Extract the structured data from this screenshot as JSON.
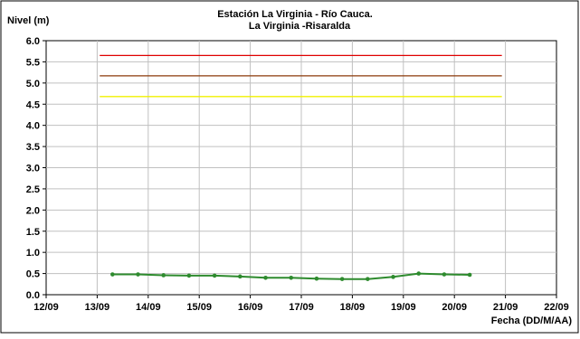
{
  "chart_data": {
    "type": "line",
    "title": "Estación La Virginia  - Río Cauca.",
    "subtitle": "La Virginia -Risaralda",
    "ylabel": "Nivel (m)",
    "xlabel": "Fecha (DD/M/AA)",
    "ylim": [
      0,
      6
    ],
    "y_ticks": [
      "0.0",
      "0.5",
      "1.0",
      "1.5",
      "2.0",
      "2.5",
      "3.0",
      "3.5",
      "4.0",
      "4.5",
      "5.0",
      "5.5",
      "6.0"
    ],
    "x_ticks": [
      "12/09",
      "13/09",
      "14/09",
      "15/09",
      "16/09",
      "17/09",
      "18/09",
      "19/09",
      "20/09",
      "21/09",
      "22/09"
    ],
    "grid": true,
    "thresholds": [
      {
        "value": 5.65,
        "x_start": "13/09",
        "x_end": "20/09",
        "x_start_offset": 0.05,
        "x_end_offset": 0.93,
        "color": "#e00000"
      },
      {
        "value": 5.17,
        "x_start": "13/09",
        "x_end": "20/09",
        "x_start_offset": 0.05,
        "x_end_offset": 0.93,
        "color": "#8b3a0a"
      },
      {
        "value": 4.68,
        "x_start": "13/09",
        "x_end": "20/09",
        "x_start_offset": 0.05,
        "x_end_offset": 0.93,
        "color": "#f0f000"
      }
    ],
    "series": [
      {
        "color": "#2e8b2e",
        "x": [
          13.3,
          13.8,
          14.3,
          14.8,
          15.3,
          15.8,
          16.3,
          16.8,
          17.3,
          17.8,
          18.3,
          18.8,
          19.3,
          19.8,
          20.3
        ],
        "values": [
          0.48,
          0.48,
          0.46,
          0.45,
          0.45,
          0.43,
          0.4,
          0.4,
          0.38,
          0.37,
          0.37,
          0.42,
          0.5,
          0.48,
          0.47
        ]
      }
    ]
  }
}
